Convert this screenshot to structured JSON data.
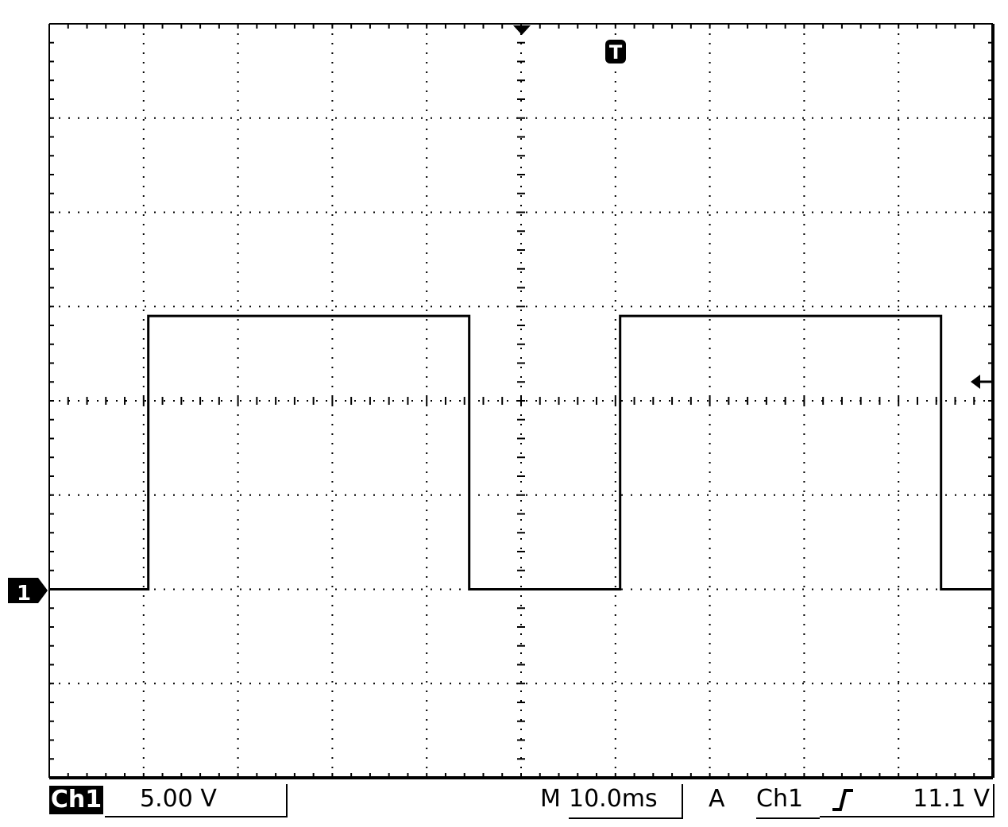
{
  "chart_data": {
    "type": "line",
    "title": "",
    "xlabel": "",
    "ylabel": "",
    "grid": true,
    "divisions": {
      "x": 10,
      "y": 8
    },
    "x_units": "ms",
    "y_units": "V",
    "x_range_ms": [
      -50,
      50
    ],
    "y_range_div": [
      -2,
      6
    ],
    "series": [
      {
        "x": [
          -50,
          -39.5,
          -39.5,
          -5.5,
          -5.5,
          10.5,
          10.5,
          44.5,
          44.5,
          50
        ],
        "y_div": [
          0,
          0,
          2.9,
          2.9,
          0,
          0,
          2.9,
          2.9,
          0,
          0
        ]
      }
    ],
    "channel_marker": "1",
    "trigger_marker": "T"
  },
  "status_bar": {
    "channel_label": "Ch1",
    "volts_per_div": "5.00 V",
    "timebase_prefix": "M",
    "timebase": "10.0ms",
    "trigger_mode": "A",
    "trigger_source": "Ch1",
    "trigger_slope_icon": "rising-edge-icon",
    "trigger_level": "11.1 V"
  }
}
